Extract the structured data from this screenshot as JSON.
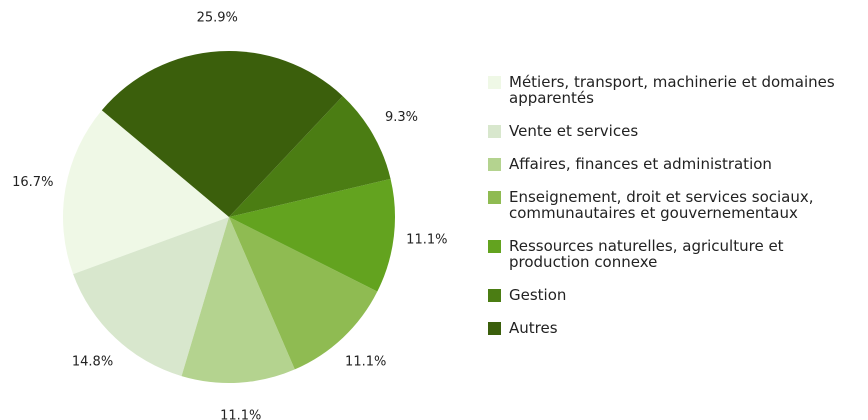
{
  "chart_data": {
    "type": "pie",
    "categories": [
      "Métiers, transport, machinerie et domaines apparentés",
      "Vente et services",
      "Affaires, finances et administration",
      "Enseignement, droit et services sociaux, communautaires et gouvernementaux",
      "Ressources naturelles, agriculture et production connexe",
      "Gestion",
      "Autres"
    ],
    "values": [
      16.7,
      14.8,
      11.1,
      11.1,
      11.1,
      9.3,
      25.9
    ],
    "value_labels": [
      "16.7%",
      "14.8%",
      "11.1%",
      "11.1%",
      "11.1%",
      "9.3%",
      "25.9%"
    ],
    "colors": [
      "#eff8e6",
      "#d8e7cd",
      "#b4d38f",
      "#8fbb52",
      "#63a31f",
      "#4b7d13",
      "#3b5f0c"
    ],
    "legend": "right"
  }
}
